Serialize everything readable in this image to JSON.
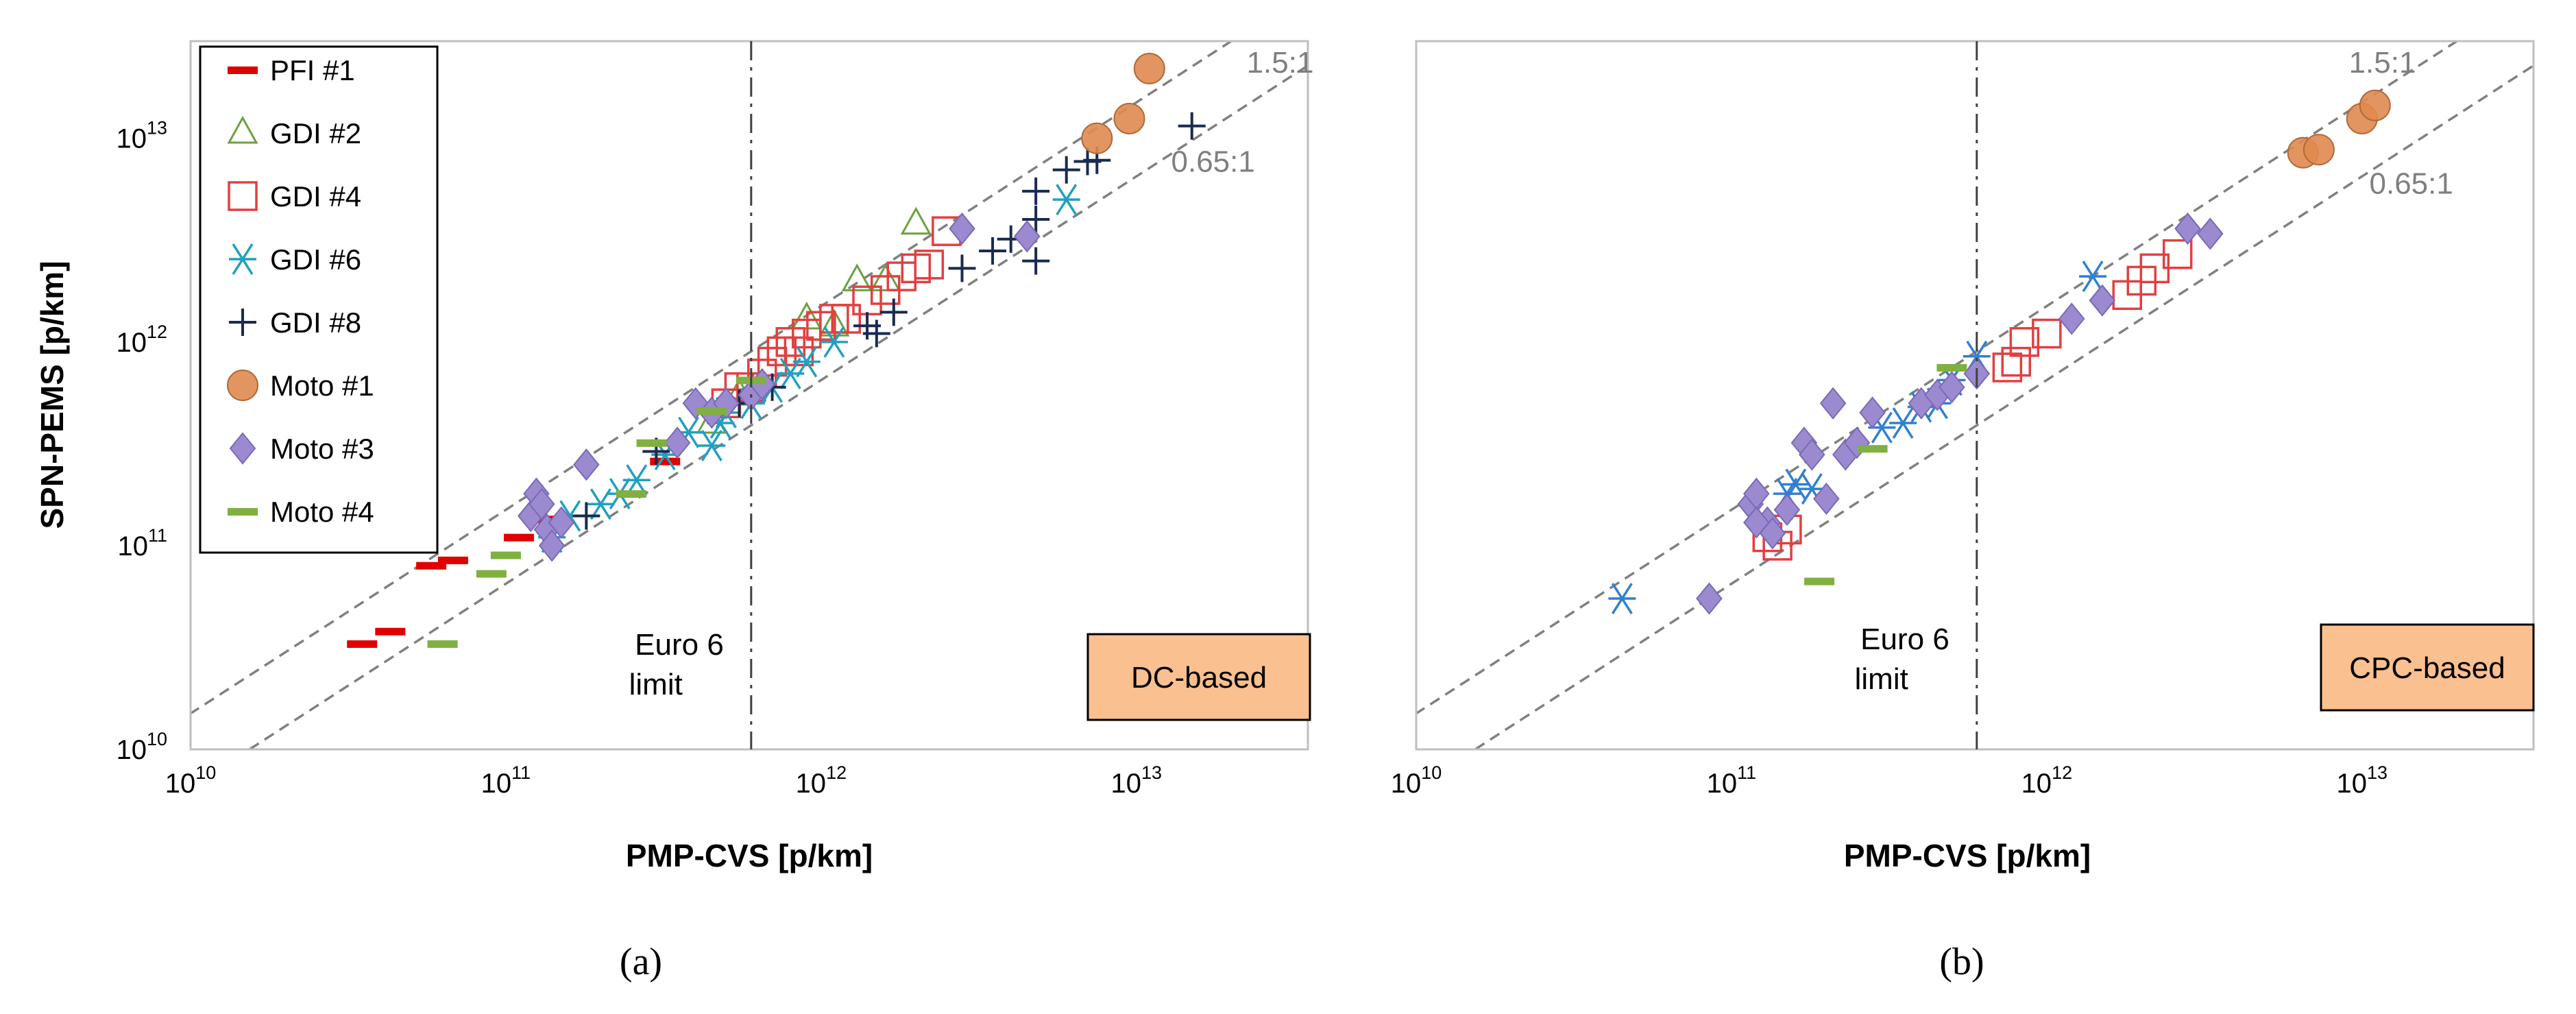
{
  "chart_data": [
    {
      "type": "scatter",
      "panel_label": "(a)",
      "xlabel": "PMP-CVS [p/km]",
      "ylabel": "SPN-PEMS [p/km]",
      "x_scale": "log",
      "y_scale": "log",
      "xlim": [
        10000000000.0,
        35000000000000.0
      ],
      "ylim": [
        10000000000.0,
        30000000000000.0
      ],
      "x_ticks": [
        10000000000.0,
        100000000000.0,
        1000000000000.0,
        10000000000000.0
      ],
      "y_ticks": [
        10000000000.0,
        100000000000.0,
        1000000000000.0,
        10000000000000.0
      ],
      "x_tick_labels": [
        {
          "base": "10",
          "exp": "10"
        },
        {
          "base": "10",
          "exp": "11"
        },
        {
          "base": "10",
          "exp": "12"
        },
        {
          "base": "10",
          "exp": "13"
        }
      ],
      "y_tick_labels": [
        {
          "base": "10",
          "exp": "10"
        },
        {
          "base": "10",
          "exp": "11"
        },
        {
          "base": "10",
          "exp": "12"
        },
        {
          "base": "10",
          "exp": "13"
        }
      ],
      "box_label": "DC-based",
      "limit_label_line1": "Euro 6",
      "limit_label_line2": "limit",
      "limit_x": 600000000000.0,
      "ratio_lines": [
        {
          "label": "1.5:1",
          "ratio": 1.5
        },
        {
          "label": "0.65:1",
          "ratio": 0.65
        }
      ],
      "legend_position": "top-left",
      "series": [
        {
          "name": "PFI #1",
          "marker": "dash",
          "color": "#e00000",
          "points": [
            [
              35000000000.0,
              33000000000.0
            ],
            [
              43000000000.0,
              38000000000.0
            ],
            [
              58000000000.0,
              80000000000.0
            ],
            [
              68000000000.0,
              85000000000.0
            ],
            [
              110000000000.0,
              110000000000.0
            ],
            [
              130000000000.0,
              135000000000.0
            ],
            [
              320000000000.0,
              260000000000.0
            ]
          ]
        },
        {
          "name": "GDI #2",
          "marker": "triangle",
          "color": "#70a040",
          "points": [
            [
              450000000000.0,
              400000000000.0
            ],
            [
              550000000000.0,
              550000000000.0
            ],
            [
              900000000000.0,
              1300000000000.0
            ],
            [
              1300000000000.0,
              2000000000000.0
            ],
            [
              1600000000000.0,
              2000000000000.0
            ],
            [
              2000000000000.0,
              3800000000000.0
            ],
            [
              1100000000000.0,
              1200000000000.0
            ]
          ]
        },
        {
          "name": "GDI #4",
          "marker": "square",
          "color": "#e04040",
          "points": [
            [
              600000000000.0,
              600000000000.0
            ],
            [
              650000000000.0,
              700000000000.0
            ],
            [
              700000000000.0,
              800000000000.0
            ],
            [
              750000000000.0,
              900000000000.0
            ],
            [
              800000000000.0,
              1000000000000.0
            ],
            [
              900000000000.0,
              1100000000000.0
            ],
            [
              1000000000000.0,
              1200000000000.0
            ],
            [
              1100000000000.0,
              1300000000000.0
            ],
            [
              1200000000000.0,
              1300000000000.0
            ],
            [
              1400000000000.0,
              1600000000000.0
            ],
            [
              1600000000000.0,
              1800000000000.0
            ],
            [
              1800000000000.0,
              2100000000000.0
            ],
            [
              2000000000000.0,
              2300000000000.0
            ],
            [
              2200000000000.0,
              2400000000000.0
            ],
            [
              2500000000000.0,
              3500000000000.0
            ],
            [
              500000000000.0,
              500000000000.0
            ],
            [
              550000000000.0,
              600000000000.0
            ],
            [
              850000000000.0,
              900000000000.0
            ]
          ]
        },
        {
          "name": "GDI #6",
          "marker": "asterisk",
          "color": "#20a0c0",
          "points": [
            [
              140000000000.0,
              110000000000.0
            ],
            [
              160000000000.0,
              140000000000.0
            ],
            [
              200000000000.0,
              160000000000.0
            ],
            [
              230000000000.0,
              180000000000.0
            ],
            [
              260000000000.0,
              210000000000.0
            ],
            [
              320000000000.0,
              280000000000.0
            ],
            [
              380000000000.0,
              360000000000.0
            ],
            [
              450000000000.0,
              310000000000.0
            ],
            [
              500000000000.0,
              450000000000.0
            ],
            [
              600000000000.0,
              500000000000.0
            ],
            [
              700000000000.0,
              600000000000.0
            ],
            [
              800000000000.0,
              700000000000.0
            ],
            [
              900000000000.0,
              800000000000.0
            ],
            [
              1100000000000.0,
              1000000000000.0
            ],
            [
              6000000000000.0,
              5000000000000.0
            ],
            [
              480000000000.0,
              400000000000.0
            ]
          ]
        },
        {
          "name": "GDI #8",
          "marker": "plus",
          "color": "#1a2a50",
          "points": [
            [
              180000000000.0,
              140000000000.0
            ],
            [
              300000000000.0,
              290000000000.0
            ],
            [
              550000000000.0,
              500000000000.0
            ],
            [
              700000000000.0,
              600000000000.0
            ],
            [
              1400000000000.0,
              1200000000000.0
            ],
            [
              1500000000000.0,
              1100000000000.0
            ],
            [
              1700000000000.0,
              1400000000000.0
            ],
            [
              2800000000000.0,
              2300000000000.0
            ],
            [
              3500000000000.0,
              2800000000000.0
            ],
            [
              4000000000000.0,
              3200000000000.0
            ],
            [
              4800000000000.0,
              2500000000000.0
            ],
            [
              4800000000000.0,
              4000000000000.0
            ],
            [
              4800000000000.0,
              5500000000000.0
            ],
            [
              6000000000000.0,
              7000000000000.0
            ],
            [
              7000000000000.0,
              7700000000000.0
            ],
            [
              7500000000000.0,
              7800000000000.0
            ],
            [
              15000000000000.0,
              11500000000000.0
            ]
          ]
        },
        {
          "name": "Moto #1",
          "marker": "circle",
          "color": "#e08a50",
          "points": [
            [
              7500000000000.0,
              10000000000000.0
            ],
            [
              9500000000000.0,
              12500000000000.0
            ],
            [
              11000000000000.0,
              22000000000000.0
            ]
          ]
        },
        {
          "name": "Moto #3",
          "marker": "diamond",
          "color": "#9b8ad0",
          "points": [
            [
              120000000000.0,
              140000000000.0
            ],
            [
              125000000000.0,
              180000000000.0
            ],
            [
              135000000000.0,
              120000000000.0
            ],
            [
              140000000000.0,
              100000000000.0
            ],
            [
              150000000000.0,
              130000000000.0
            ],
            [
              180000000000.0,
              250000000000.0
            ],
            [
              350000000000.0,
              320000000000.0
            ],
            [
              400000000000.0,
              500000000000.0
            ],
            [
              450000000000.0,
              450000000000.0
            ],
            [
              500000000000.0,
              500000000000.0
            ],
            [
              600000000000.0,
              550000000000.0
            ],
            [
              650000000000.0,
              620000000000.0
            ],
            [
              2800000000000.0,
              3600000000000.0
            ],
            [
              4500000000000.0,
              3300000000000.0
            ],
            [
              130000000000.0,
              160000000000.0
            ]
          ]
        },
        {
          "name": "Moto #4",
          "marker": "dash",
          "color": "#80b040",
          "points": [
            [
              63000000000.0,
              33000000000.0
            ],
            [
              90000000000.0,
              73000000000.0
            ],
            [
              100000000000.0,
              90000000000.0
            ],
            [
              290000000000.0,
              320000000000.0
            ],
            [
              250000000000.0,
              180000000000.0
            ],
            [
              450000000000.0,
              460000000000.0
            ],
            [
              600000000000.0,
              650000000000.0
            ]
          ]
        }
      ]
    },
    {
      "type": "scatter",
      "panel_label": "(b)",
      "xlabel": "PMP-CVS [p/km]",
      "ylabel": "",
      "x_scale": "log",
      "y_scale": "log",
      "xlim": [
        10000000000.0,
        35000000000000.0
      ],
      "ylim": [
        10000000000.0,
        30000000000000.0
      ],
      "x_ticks": [
        10000000000.0,
        100000000000.0,
        1000000000000.0,
        10000000000000.0
      ],
      "x_tick_labels": [
        {
          "base": "10",
          "exp": "10"
        },
        {
          "base": "10",
          "exp": "11"
        },
        {
          "base": "10",
          "exp": "12"
        },
        {
          "base": "10",
          "exp": "13"
        }
      ],
      "box_label": "CPC-based",
      "limit_label_line1": "Euro 6",
      "limit_label_line2": "limit",
      "limit_x": 600000000000.0,
      "ratio_lines": [
        {
          "label": "1.5:1",
          "ratio": 1.5
        },
        {
          "label": "0.65:1",
          "ratio": 0.65
        }
      ],
      "series": [
        {
          "name": "GDI #4",
          "marker": "square",
          "color": "#e04040",
          "points": [
            [
              140000000000.0,
              100000000000.0
            ],
            [
              150000000000.0,
              120000000000.0
            ],
            [
              800000000000.0,
              800000000000.0
            ],
            [
              850000000000.0,
              1000000000000.0
            ],
            [
              1000000000000.0,
              1100000000000.0
            ],
            [
              1800000000000.0,
              1700000000000.0
            ],
            [
              2000000000000.0,
              2000000000000.0
            ],
            [
              2200000000000.0,
              2300000000000.0
            ],
            [
              2600000000000.0,
              2700000000000.0
            ],
            [
              130000000000.0,
              110000000000.0
            ],
            [
              750000000000.0,
              750000000000.0
            ]
          ]
        },
        {
          "name": "GDI #6",
          "marker": "asterisk",
          "color": "#3080d0",
          "points": [
            [
              45000000000.0,
              55000000000.0
            ],
            [
              150000000000.0,
              180000000000.0
            ],
            [
              160000000000.0,
              200000000000.0
            ],
            [
              180000000000.0,
              190000000000.0
            ],
            [
              300000000000.0,
              380000000000.0
            ],
            [
              350000000000.0,
              400000000000.0
            ],
            [
              400000000000.0,
              480000000000.0
            ],
            [
              450000000000.0,
              500000000000.0
            ],
            [
              500000000000.0,
              650000000000.0
            ],
            [
              600000000000.0,
              850000000000.0
            ],
            [
              1400000000000.0,
              2100000000000.0
            ]
          ]
        },
        {
          "name": "Moto #1",
          "marker": "circle",
          "color": "#e08a50",
          "points": [
            [
              6500000000000.0,
              8500000000000.0
            ],
            [
              7300000000000.0,
              8800000000000.0
            ],
            [
              10000000000000.0,
              12500000000000.0
            ],
            [
              11000000000000.0,
              14500000000000.0
            ]
          ]
        },
        {
          "name": "Moto #3",
          "marker": "diamond",
          "color": "#9b8ad0",
          "points": [
            [
              85000000000.0,
              55000000000.0
            ],
            [
              115000000000.0,
              160000000000.0
            ],
            [
              120000000000.0,
              180000000000.0
            ],
            [
              130000000000.0,
              130000000000.0
            ],
            [
              135000000000.0,
              115000000000.0
            ],
            [
              150000000000.0,
              150000000000.0
            ],
            [
              170000000000.0,
              320000000000.0
            ],
            [
              180000000000.0,
              280000000000.0
            ],
            [
              200000000000.0,
              170000000000.0
            ],
            [
              210000000000.0,
              500000000000.0
            ],
            [
              230000000000.0,
              280000000000.0
            ],
            [
              250000000000.0,
              320000000000.0
            ],
            [
              280000000000.0,
              450000000000.0
            ],
            [
              400000000000.0,
              500000000000.0
            ],
            [
              450000000000.0,
              550000000000.0
            ],
            [
              500000000000.0,
              600000000000.0
            ],
            [
              600000000000.0,
              700000000000.0
            ],
            [
              1200000000000.0,
              1300000000000.0
            ],
            [
              1500000000000.0,
              1600000000000.0
            ],
            [
              2800000000000.0,
              3600000000000.0
            ],
            [
              3300000000000.0,
              3400000000000.0
            ],
            [
              120000000000.0,
              130000000000.0
            ]
          ]
        },
        {
          "name": "Moto #4",
          "marker": "dash",
          "color": "#80b040",
          "points": [
            [
              190000000000.0,
              67000000000.0
            ],
            [
              280000000000.0,
              300000000000.0
            ],
            [
              500000000000.0,
              750000000000.0
            ]
          ]
        }
      ]
    }
  ]
}
